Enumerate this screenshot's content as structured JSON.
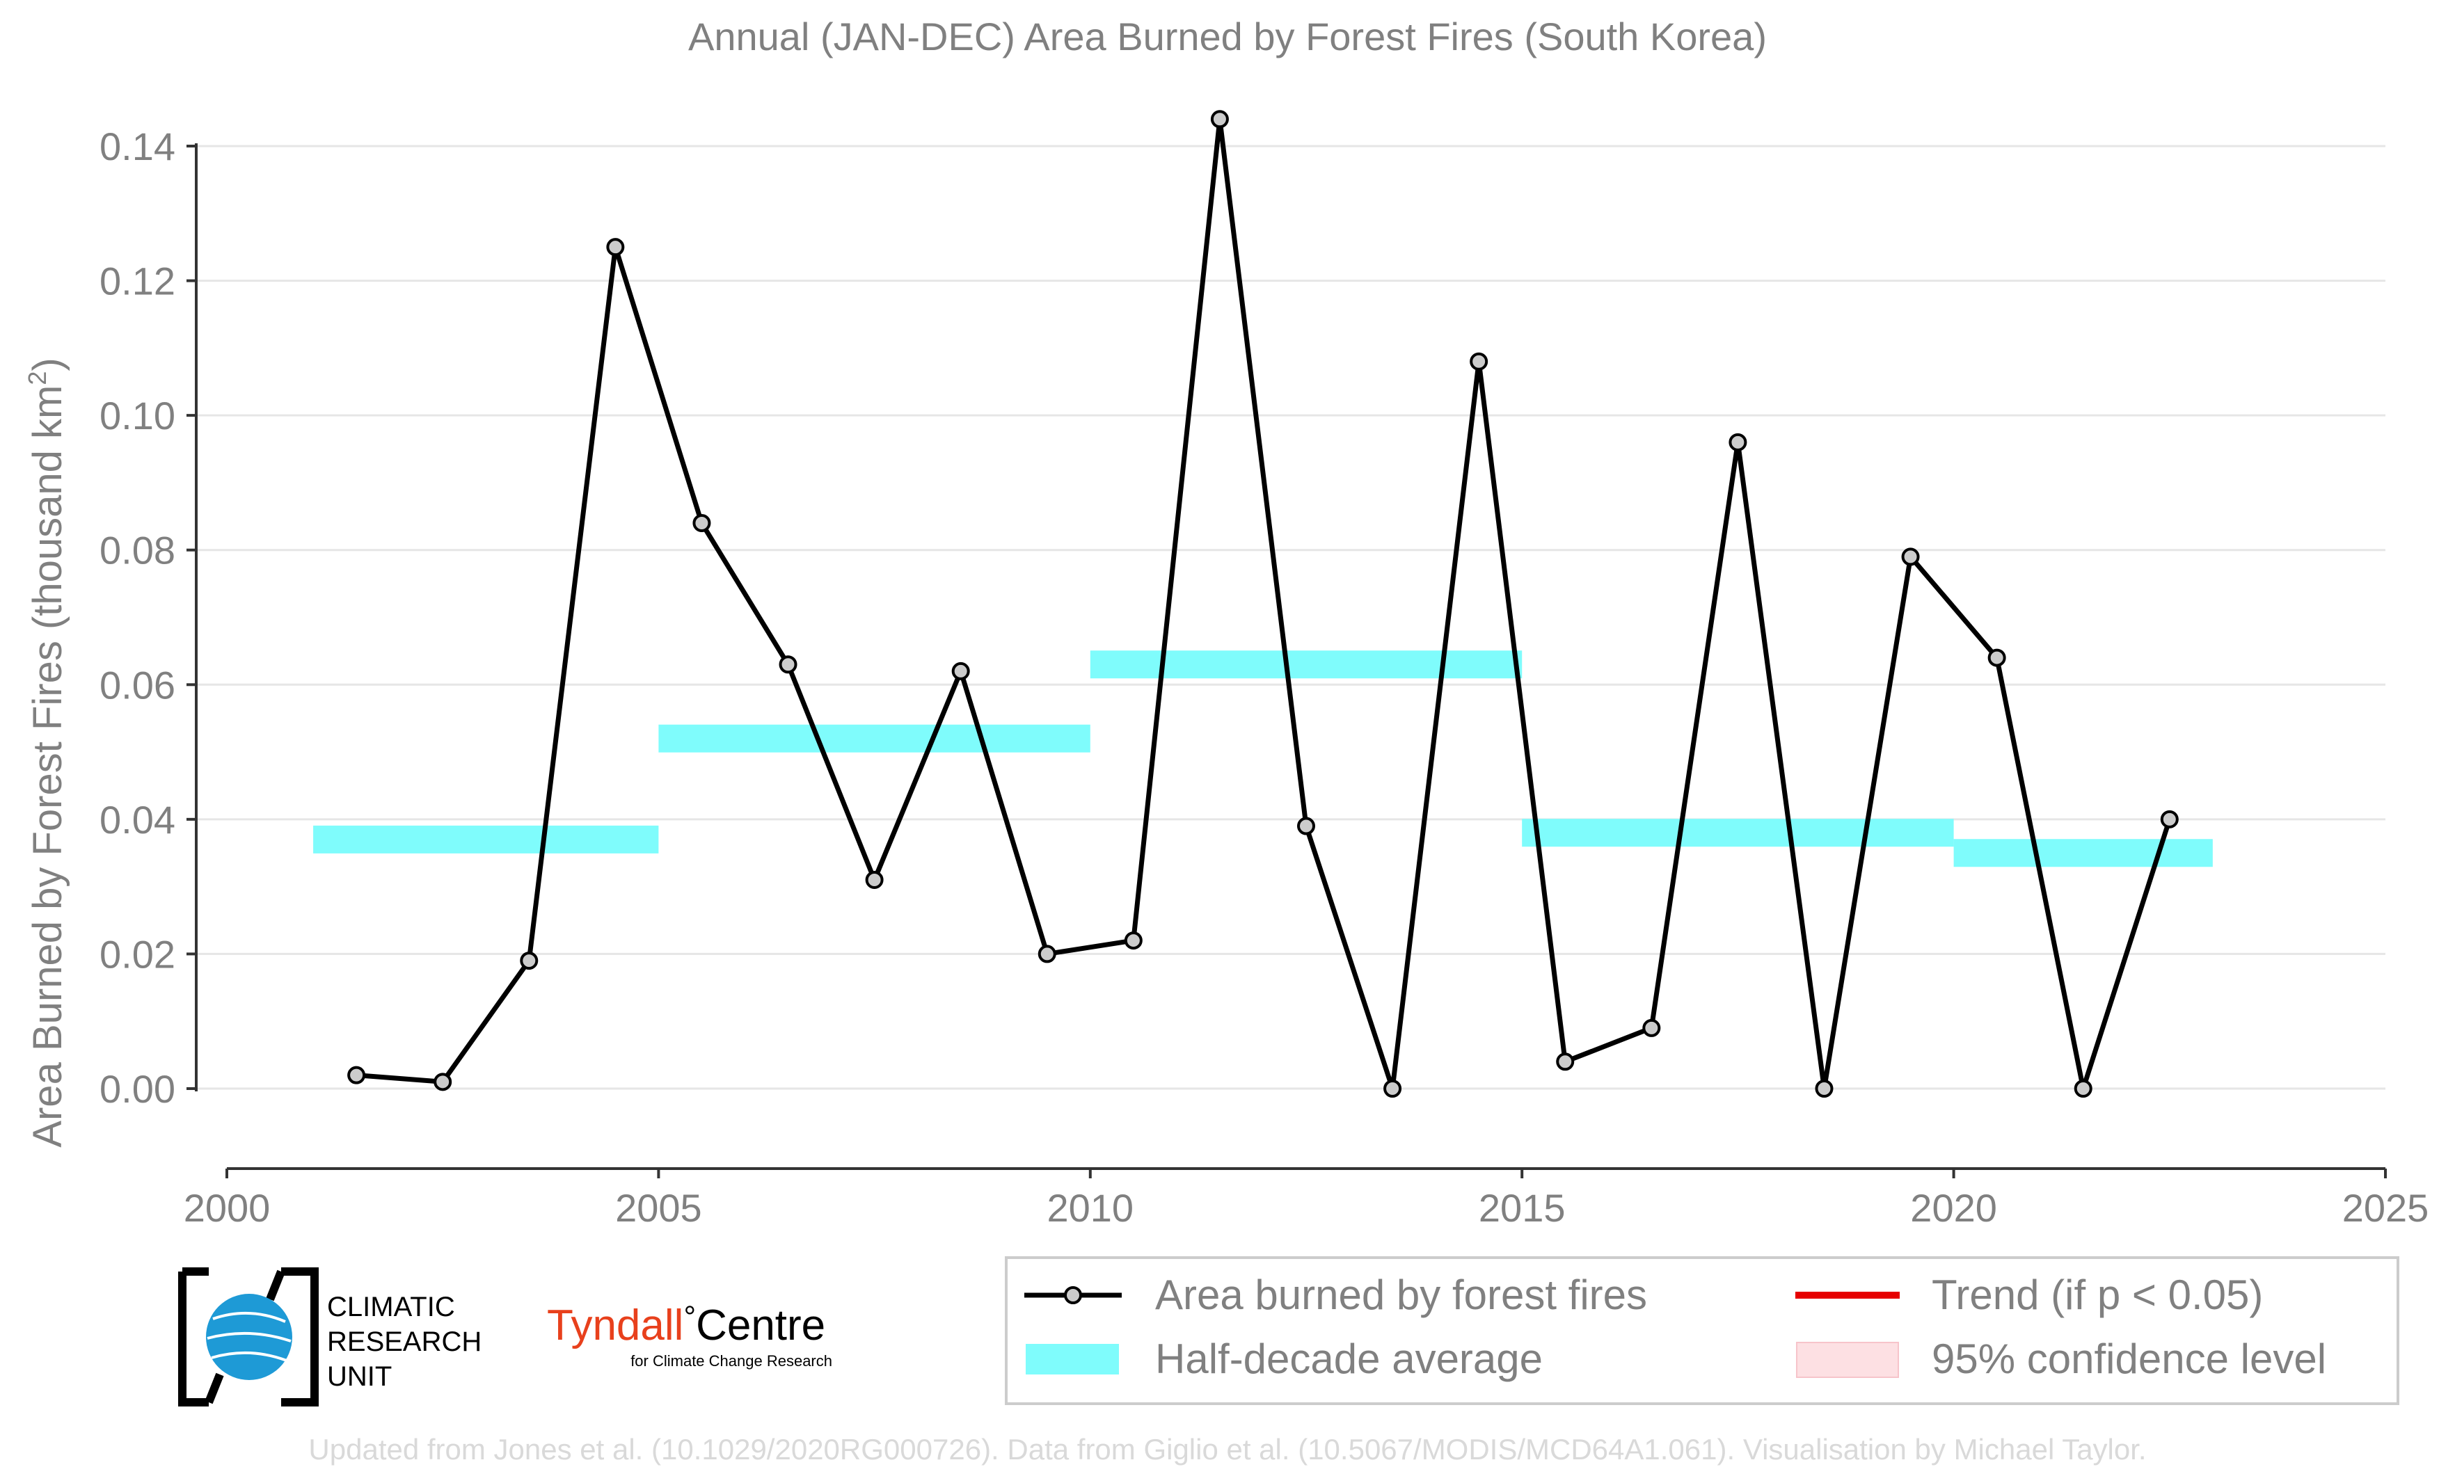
{
  "chart_data": {
    "type": "line",
    "title": "Annual (JAN-DEC) Area Burned by Forest Fires (South Korea)",
    "xlabel": "",
    "ylabel": "Area Burned by Forest Fires (thousand km",
    "ylabel_sup": "2",
    "ylabel_close": ")",
    "xlim": [
      2000,
      2025
    ],
    "ylim": [
      -0.012,
      0.148
    ],
    "x_ticks": [
      2000,
      2005,
      2010,
      2015,
      2020,
      2025
    ],
    "x_tick_labels": [
      "2000",
      "2005",
      "2010",
      "2015",
      "2020",
      "2025"
    ],
    "y_ticks": [
      0.0,
      0.02,
      0.04,
      0.06,
      0.08,
      0.1,
      0.12,
      0.14
    ],
    "y_tick_labels": [
      "0.00",
      "0.02",
      "0.04",
      "0.06",
      "0.08",
      "0.10",
      "0.12",
      "0.14"
    ],
    "grid": "horizontal",
    "series": [
      {
        "name": "Area burned by forest fires",
        "x": [
          2001.5,
          2002.5,
          2003.5,
          2004.5,
          2005.5,
          2006.5,
          2007.5,
          2008.5,
          2009.5,
          2010.5,
          2011.5,
          2012.5,
          2013.5,
          2014.5,
          2015.5,
          2016.5,
          2017.5,
          2018.5,
          2019.5,
          2020.5,
          2021.5,
          2022.5
        ],
        "values": [
          0.002,
          0.001,
          0.019,
          0.125,
          0.084,
          0.063,
          0.031,
          0.062,
          0.02,
          0.022,
          0.144,
          0.039,
          0.0,
          0.108,
          0.004,
          0.009,
          0.096,
          0.0,
          0.079,
          0.064,
          0.0,
          0.04
        ],
        "color": "#000000",
        "marker_fill": "#cccccc"
      }
    ],
    "half_decade_average": {
      "name": "Half-decade average",
      "color": "#7ffcfc",
      "segments": [
        {
          "x_start": 2001,
          "x_end": 2005,
          "value": 0.037
        },
        {
          "x_start": 2005,
          "x_end": 2010,
          "value": 0.052
        },
        {
          "x_start": 2010,
          "x_end": 2015,
          "value": 0.063
        },
        {
          "x_start": 2015,
          "x_end": 2020,
          "value": 0.038
        },
        {
          "x_start": 2020,
          "x_end": 2023,
          "value": 0.035
        }
      ]
    },
    "legend": {
      "position": "bottom-right",
      "items": [
        {
          "label": "Area burned by forest fires",
          "kind": "line-marker",
          "color": "#000000"
        },
        {
          "label": "Trend (if p < 0.05)",
          "kind": "line",
          "color": "#e60000"
        },
        {
          "label": "Half-decade average",
          "kind": "band",
          "color": "#7ffcfc"
        },
        {
          "label": "95% confidence level",
          "kind": "band",
          "color": "#fde0e3"
        }
      ]
    },
    "footer": "Updated from Jones et al. (10.1029/2020RG000726). Data from Giglio et al. (10.5067/MODIS/MCD64A1.061). Visualisation by Michael Taylor."
  },
  "logos": {
    "cru": {
      "line1": "CLIMATIC",
      "line2": "RESEARCH",
      "line3": "UNIT"
    },
    "tyndall": {
      "name": "Tyndall",
      "degree": "°",
      "centre": "Centre",
      "sub": "for Climate Change Research"
    }
  },
  "colors": {
    "text_gray": "#808080",
    "grid": "#e6e6e6",
    "axis": "#333333",
    "footer": "#d9d9d9",
    "tyndall_red": "#e8401c",
    "cru_blue": "#1e9ad6"
  }
}
